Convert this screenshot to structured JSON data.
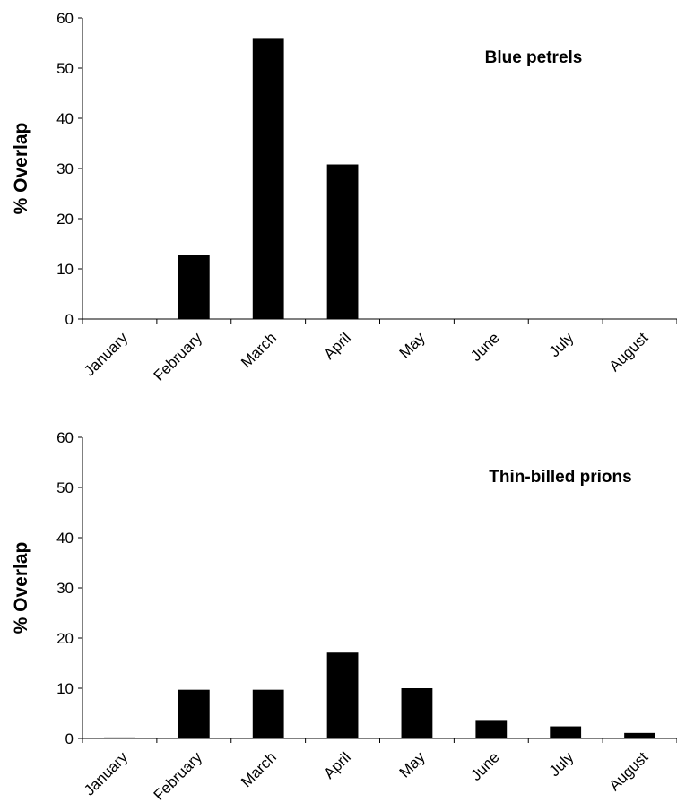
{
  "chart_data": [
    {
      "type": "bar",
      "title": "Blue petrels",
      "ylabel": "% Overlap",
      "xlabel": "",
      "categories": [
        "January",
        "February",
        "March",
        "April",
        "May",
        "June",
        "July",
        "August"
      ],
      "values": [
        0,
        12.7,
        56,
        30.8,
        0,
        0,
        0,
        0
      ],
      "ylim": [
        0,
        60
      ],
      "yticks": [
        0,
        10,
        20,
        30,
        40,
        50,
        60
      ],
      "grid": false,
      "color": "#000000"
    },
    {
      "type": "bar",
      "title": "Thin-billed prions",
      "ylabel": "% Overlap",
      "xlabel": "",
      "categories": [
        "January",
        "February",
        "March",
        "April",
        "May",
        "June",
        "July",
        "August"
      ],
      "values": [
        0.2,
        9.7,
        9.7,
        17.1,
        10,
        3.5,
        2.4,
        1.1
      ],
      "ylim": [
        0,
        60
      ],
      "yticks": [
        0,
        10,
        20,
        30,
        40,
        50,
        60
      ],
      "grid": false,
      "color": "#000000"
    }
  ]
}
